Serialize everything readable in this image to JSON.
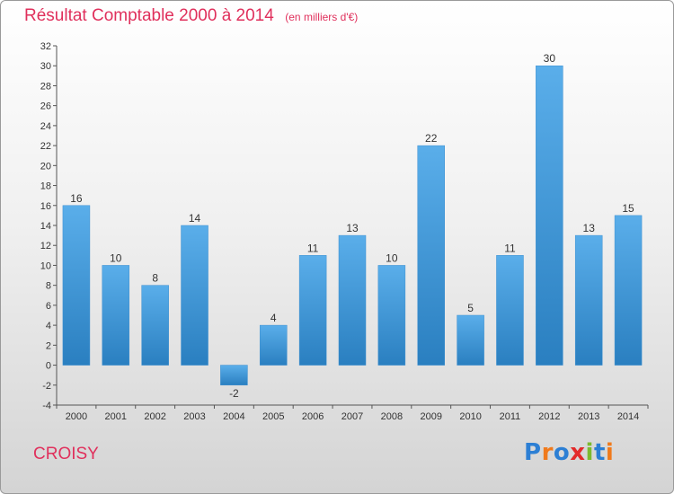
{
  "header": {
    "title": "Résultat Comptable 2000 à 2014",
    "subtitle": "(en milliers d'€)"
  },
  "footer": {
    "town": "CROISY",
    "logo": "Proxiti"
  },
  "colors": {
    "title": "#e0305c",
    "bar_light": "#5aaeea",
    "bar_dark": "#2a7fc0",
    "logo_letters": [
      "#2c7fd4",
      "#f07a1c",
      "#2c7fd4",
      "#e32a2a",
      "#7cba2e",
      "#2c7fd4",
      "#f07a1c"
    ]
  },
  "chart_data": {
    "type": "bar",
    "title": "Résultat Comptable 2000 à 2014",
    "subtitle": "(en milliers d'€)",
    "categories": [
      "2000",
      "2001",
      "2002",
      "2003",
      "2004",
      "2005",
      "2006",
      "2007",
      "2008",
      "2009",
      "2010",
      "2011",
      "2012",
      "2013",
      "2014"
    ],
    "values": [
      16,
      10,
      8,
      14,
      -2,
      4,
      11,
      13,
      10,
      22,
      5,
      11,
      30,
      13,
      15
    ],
    "ylim": [
      -4,
      32
    ],
    "yticks": [
      -4,
      -2,
      0,
      2,
      4,
      6,
      8,
      10,
      12,
      14,
      16,
      18,
      20,
      22,
      24,
      26,
      28,
      30,
      32
    ],
    "xlabel": "",
    "ylabel": "",
    "grid": false,
    "legend": "none"
  }
}
